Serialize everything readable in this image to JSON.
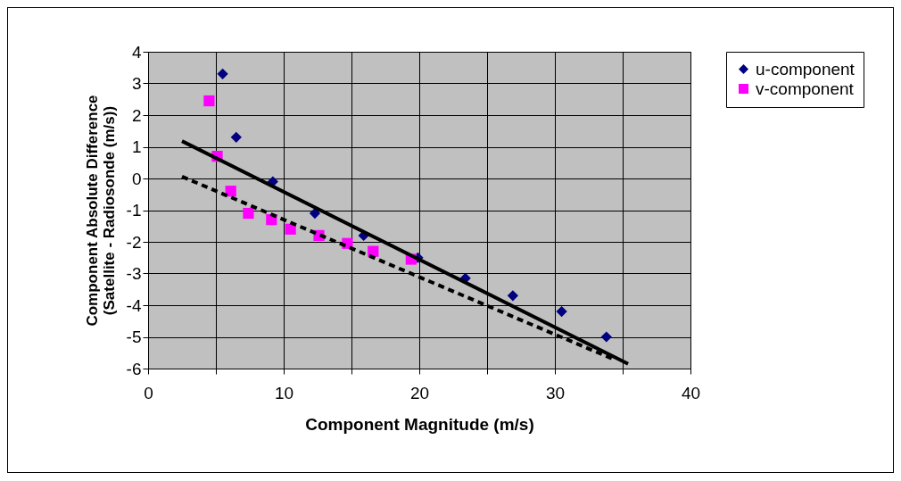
{
  "chart_data": {
    "type": "scatter",
    "xlabel": "Component Magnitude (m/s)",
    "ylabel": "Component Absolute Difference\n(Satellite - Radiosonde (m/s))",
    "xlim": [
      0,
      40
    ],
    "ylim": [
      -6,
      4
    ],
    "xticks": [
      0,
      {
        "value": 5,
        "label": null
      },
      10,
      {
        "value": 15,
        "label": null
      },
      20,
      {
        "value": 25,
        "label": null
      },
      30,
      {
        "value": 35,
        "label": null
      },
      40
    ],
    "yticks": [
      -6,
      -5,
      -4,
      -3,
      -2,
      -1,
      0,
      1,
      2,
      3,
      4
    ],
    "grid": true,
    "legend": "right",
    "series": [
      {
        "name": "u-component",
        "color": "#000080",
        "marker": "diamond",
        "x": [
          5.5,
          6.5,
          9.2,
          12.3,
          15.9,
          19.9,
          23.4,
          26.9,
          30.5,
          33.8
        ],
        "values": [
          3.3,
          1.3,
          -0.1,
          -1.1,
          -1.8,
          -2.5,
          -3.15,
          -3.7,
          -4.2,
          -5.0
        ]
      },
      {
        "name": "v-component",
        "color": "#ff00ff",
        "marker": "square",
        "x": [
          4.5,
          5.1,
          6.1,
          7.4,
          9.1,
          10.5,
          12.6,
          14.7,
          16.6,
          19.4
        ],
        "values": [
          2.45,
          0.7,
          -0.4,
          -1.1,
          -1.3,
          -1.6,
          -1.8,
          -2.05,
          -2.3,
          -2.55
        ]
      },
      {
        "type": "line",
        "color": "#000000",
        "line_style": "solid",
        "x": [
          2.5,
          35.4
        ],
        "values": [
          1.18,
          -5.85
        ]
      },
      {
        "type": "line",
        "color": "#000000",
        "line_style": "dashed",
        "x": [
          2.5,
          34.3
        ],
        "values": [
          0.06,
          -5.7
        ]
      }
    ]
  }
}
